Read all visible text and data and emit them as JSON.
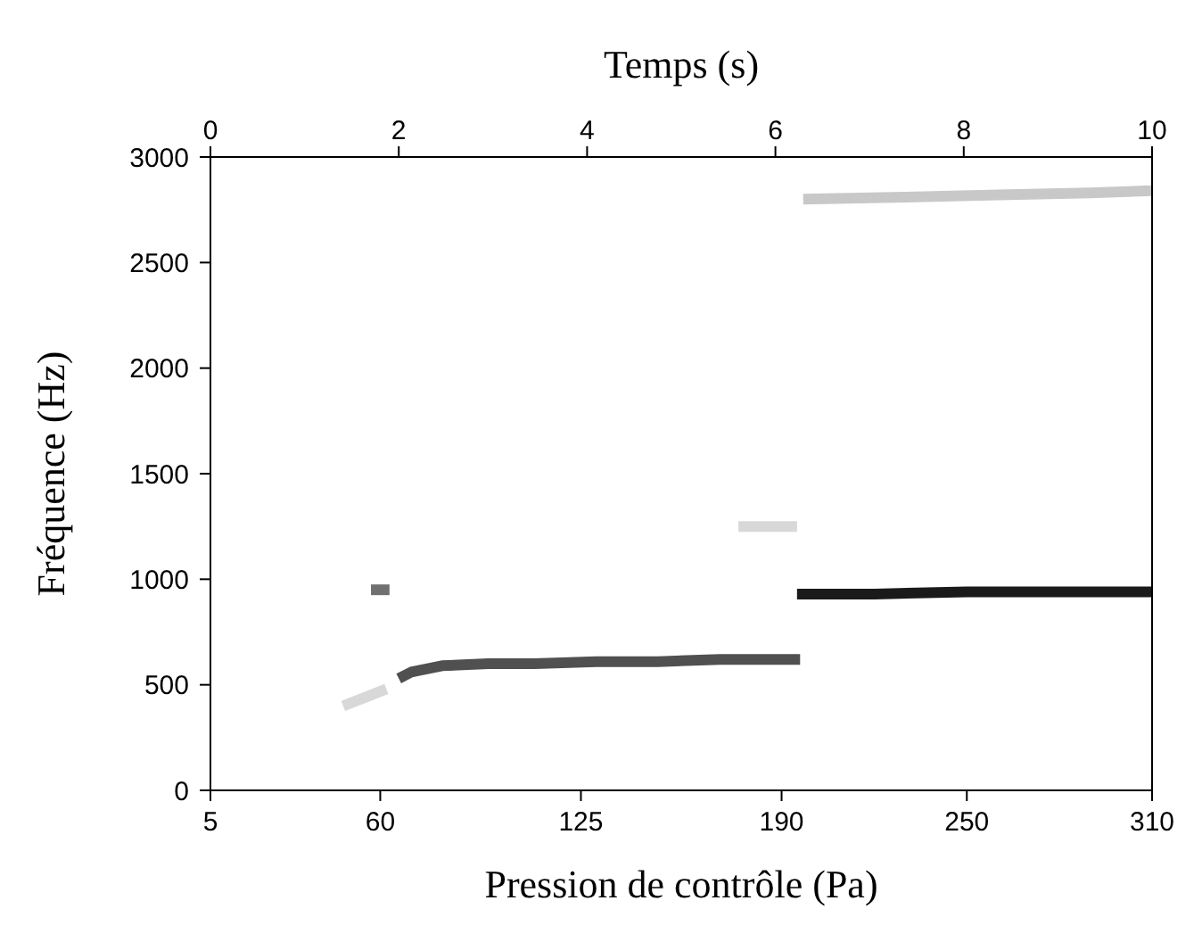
{
  "chart_data": {
    "type": "line",
    "xlabel": "Pression de contrôle (Pa)",
    "ylabel": "Fréquence (Hz)",
    "x2label": "Temps (s)",
    "xlim": [
      5,
      310
    ],
    "xticks": [
      5,
      60,
      125,
      190,
      250,
      310
    ],
    "x2lim": [
      0,
      10
    ],
    "x2ticks": [
      0,
      2,
      4,
      6,
      8,
      10
    ],
    "ylim": [
      0,
      3000
    ],
    "yticks": [
      0,
      500,
      1000,
      1500,
      2000,
      2500,
      3000
    ],
    "grid": false,
    "marker": "none",
    "line_style": "solid",
    "series": [
      {
        "color": "#d8d8d8",
        "x": [
          48,
          55,
          62
        ],
        "values": [
          400,
          440,
          480
        ]
      },
      {
        "color": "#707070",
        "x": [
          57,
          63
        ],
        "values": [
          950,
          950
        ]
      },
      {
        "color": "#505050",
        "x": [
          66,
          70,
          80,
          95,
          110,
          130,
          150,
          170,
          190,
          196
        ],
        "values": [
          530,
          560,
          590,
          600,
          600,
          610,
          610,
          620,
          620,
          620
        ]
      },
      {
        "color": "#d8d8d8",
        "x": [
          176,
          195
        ],
        "values": [
          1250,
          1250
        ]
      },
      {
        "color": "#1a1a1a",
        "x": [
          195,
          220,
          250,
          280,
          310
        ],
        "values": [
          930,
          930,
          940,
          940,
          940
        ]
      },
      {
        "color": "#c8c8c8",
        "x": [
          197,
          230,
          260,
          290,
          310
        ],
        "values": [
          2800,
          2810,
          2820,
          2830,
          2840
        ]
      }
    ]
  }
}
